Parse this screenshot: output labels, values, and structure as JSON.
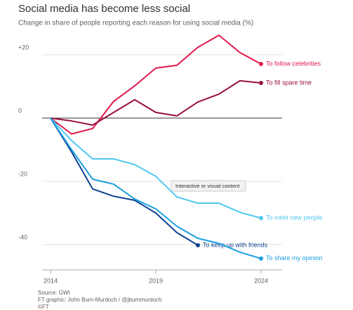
{
  "chart_data": {
    "type": "line",
    "title": "Social media has become less social",
    "subtitle": "Change in share of people reporting each reason for using social media (%)",
    "annotation": "Interactive or visual content",
    "source": "Source: GWI",
    "credit": "FT graphic: John Burn-Murdoch / @jburnmurdoch",
    "copyright": "©FT",
    "x": [
      2014,
      2015,
      2016,
      2017,
      2018,
      2019,
      2020,
      2021,
      2022,
      2023,
      2024
    ],
    "xlim": [
      2013.6,
      2025
    ],
    "xticks": [
      2014,
      2019,
      2024
    ],
    "ylim": [
      -48,
      28
    ],
    "yticks": [
      {
        "value": 20,
        "label": "+20"
      },
      0,
      -20,
      -40
    ],
    "grid": true,
    "series": [
      {
        "name": "To follow celebrities",
        "color": "#e0194a",
        "values": [
          0,
          -5,
          -3.3,
          5.3,
          10.2,
          15.8,
          16.7,
          22.4,
          26.2,
          20.7,
          17.1
        ]
      },
      {
        "name": "To fill spare time",
        "color": "#990f3d",
        "values": [
          0,
          -0.9,
          -2.2,
          1.8,
          5.8,
          1.8,
          0.7,
          5.1,
          7.6,
          11.8,
          11.1
        ]
      },
      {
        "name": "To meet new people",
        "color": "#4fc8f0",
        "values": [
          0,
          -7.1,
          -12.9,
          -12.9,
          -14.7,
          -18.4,
          -24.9,
          -26.9,
          -26.9,
          -29.8,
          -31.6
        ]
      },
      {
        "name": "To keep up with friends",
        "color": "#0f4392",
        "values": [
          0,
          -10.7,
          -22.4,
          -24.7,
          -26,
          -30,
          -36.2,
          -40.2,
          null,
          null,
          null
        ]
      },
      {
        "name": "To share my opinion",
        "color": "#1aa0e0",
        "values": [
          0,
          -10,
          -19.3,
          -20.9,
          -25.6,
          -28.7,
          -34.2,
          -38,
          -39.6,
          -42.4,
          -44.4
        ]
      }
    ]
  }
}
